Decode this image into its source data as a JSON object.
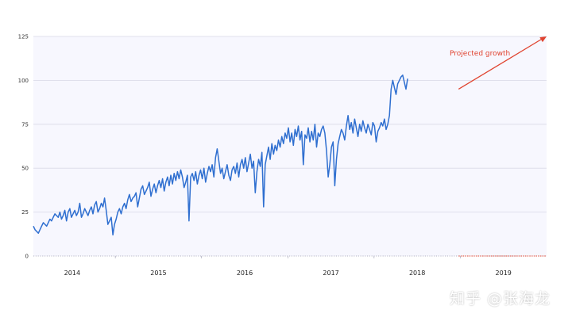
{
  "colors": {
    "line": "#2f6fd0",
    "projection": "#e0432f",
    "plot_bg": "#f7f7fe",
    "grid": "#d9d9e6"
  },
  "watermark": "知乎 @张海龙",
  "chart_data": {
    "type": "line",
    "title": "",
    "xlabel": "",
    "ylabel": "",
    "ylim": [
      0,
      125
    ],
    "xlim": [
      2013.55,
      2019.5
    ],
    "yticks": [
      0,
      25,
      50,
      75,
      100,
      125
    ],
    "xtick_labels": [
      {
        "label": "2014",
        "x": 2014
      },
      {
        "label": "2015",
        "x": 2015
      },
      {
        "label": "2016",
        "x": 2016
      },
      {
        "label": "2017",
        "x": 2017
      },
      {
        "label": "2018",
        "x": 2018
      },
      {
        "label": "2019",
        "x": 2019
      }
    ],
    "grid": true,
    "series": [
      {
        "values_x_start": 2013.55,
        "values_x_step": 0.0192,
        "values": [
          17,
          15,
          14,
          13,
          15,
          17,
          19,
          18,
          17,
          19,
          21,
          20,
          22,
          24,
          23,
          22,
          25,
          21,
          23,
          26,
          20,
          25,
          27,
          22,
          24,
          26,
          23,
          25,
          30,
          22,
          24,
          27,
          25,
          23,
          26,
          28,
          24,
          29,
          31,
          25,
          27,
          30,
          28,
          33,
          26,
          18,
          20,
          22,
          12,
          18,
          21,
          25,
          27,
          24,
          28,
          30,
          27,
          32,
          35,
          31,
          33,
          34,
          36,
          28,
          33,
          38,
          40,
          35,
          37,
          39,
          42,
          34,
          38,
          41,
          36,
          40,
          43,
          39,
          44,
          37,
          42,
          45,
          40,
          46,
          41,
          47,
          43,
          48,
          44,
          49,
          45,
          39,
          42,
          46,
          20,
          45,
          47,
          43,
          48,
          41,
          46,
          49,
          44,
          50,
          42,
          47,
          51,
          48,
          52,
          45,
          56,
          61,
          54,
          47,
          50,
          44,
          48,
          52,
          46,
          43,
          49,
          51,
          47,
          53,
          45,
          52,
          55,
          50,
          56,
          48,
          53,
          58,
          50,
          54,
          36,
          48,
          55,
          51,
          59,
          28,
          52,
          57,
          62,
          55,
          64,
          58,
          63,
          60,
          66,
          62,
          68,
          64,
          70,
          67,
          73,
          65,
          70,
          63,
          72,
          68,
          74,
          66,
          71,
          52,
          69,
          67,
          73,
          65,
          71,
          66,
          75,
          62,
          70,
          68,
          72,
          74,
          70,
          60,
          45,
          52,
          62,
          65,
          40,
          55,
          64,
          68,
          72,
          70,
          66,
          74,
          80,
          72,
          76,
          70,
          78,
          73,
          68,
          75,
          71,
          77,
          73,
          70,
          75,
          72,
          69,
          76,
          74,
          65,
          71,
          73,
          76,
          74,
          78,
          72,
          75,
          80,
          95,
          100,
          96,
          92,
          98,
          100,
          102,
          103,
          99,
          95,
          101
        ]
      }
    ],
    "projection": {
      "x": [
        2018.48,
        2019.5
      ],
      "y": [
        95,
        125
      ],
      "label": "Projected  growth"
    }
  }
}
